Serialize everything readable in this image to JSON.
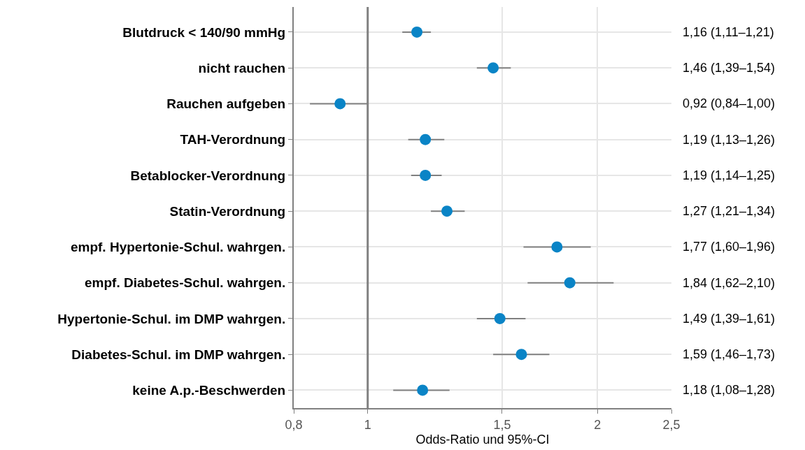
{
  "chart_data": {
    "type": "scatter",
    "orientation": "horizontal",
    "xlabel": "Odds-Ratio und 95%-CI",
    "categories": [
      "Blutdruck < 140/90 mmHg",
      "nicht rauchen",
      "Rauchen aufgeben",
      "TAH-Verordnung",
      "Betablocker-Verordnung",
      "Statin-Verordnung",
      "empf. Hypertonie-Schul. wahrgen.",
      "empf. Diabetes-Schul. wahrgen.",
      "Hypertonie-Schul. im DMP wahrgen.",
      "Diabetes-Schul. im DMP wahrgen.",
      "keine A.p.-Beschwerden"
    ],
    "values": [
      1.16,
      1.46,
      0.92,
      1.19,
      1.19,
      1.27,
      1.77,
      1.84,
      1.49,
      1.59,
      1.18
    ],
    "errors": [
      [
        1.11,
        1.21
      ],
      [
        1.39,
        1.54
      ],
      [
        0.84,
        1.0
      ],
      [
        1.13,
        1.26
      ],
      [
        1.14,
        1.25
      ],
      [
        1.21,
        1.34
      ],
      [
        1.6,
        1.96
      ],
      [
        1.62,
        2.1
      ],
      [
        1.39,
        1.61
      ],
      [
        1.46,
        1.73
      ],
      [
        1.08,
        1.28
      ]
    ],
    "value_labels": [
      "1,16 (1,11–1,21)",
      "1,46 (1,39–1,54)",
      "0,92 (0,84–1,00)",
      "1,19 (1,13–1,26)",
      "1,19 (1,14–1,25)",
      "1,27 (1,21–1,34)",
      "1,77 (1,60–1,96)",
      "1,84 (1,62–2,10)",
      "1,49 (1,39–1,61)",
      "1,59 (1,46–1,73)",
      "1,18 (1,08–1,28)"
    ],
    "color": "#0a84c6",
    "marker": "circle",
    "log": "x",
    "grid": true,
    "xlim": [
      0.8,
      2.5
    ],
    "xticks": [
      {
        "value": 0.8,
        "label": "0,8"
      },
      1,
      {
        "value": 1.5,
        "label": "1,5"
      },
      2,
      {
        "value": 2.5,
        "label": "2,5"
      }
    ],
    "ref_lines": [
      {
        "axis": "x",
        "value": 1,
        "color": "#808080"
      }
    ]
  }
}
